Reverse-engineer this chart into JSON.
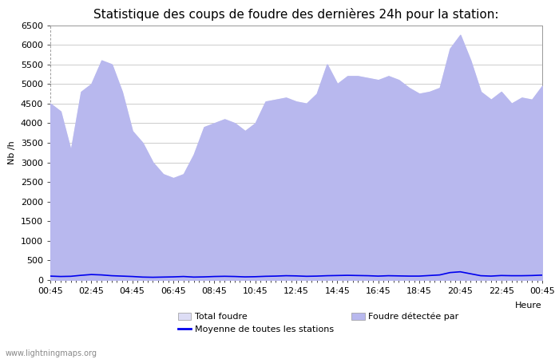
{
  "title": "Statistique des coups de foudre des dernières 24h pour la station:",
  "ylabel": "Nb /h",
  "xlabel": "Heure",
  "watermark": "www.lightningmaps.org",
  "ylim": [
    0,
    6500
  ],
  "yticks": [
    0,
    500,
    1000,
    1500,
    2000,
    2500,
    3000,
    3500,
    4000,
    4500,
    5000,
    5500,
    6000,
    6500
  ],
  "xtick_labels": [
    "00:45",
    "02:45",
    "04:45",
    "06:45",
    "08:45",
    "10:45",
    "12:45",
    "14:45",
    "16:45",
    "18:45",
    "20:45",
    "22:45",
    "00:45"
  ],
  "fill_color_total": "#ddddf5",
  "fill_color_detected": "#b8b8ee",
  "line_color": "#0000ee",
  "bg_color": "#ffffff",
  "grid_color": "#cccccc",
  "title_fontsize": 11,
  "axis_fontsize": 8,
  "tick_fontsize": 8,
  "x_values": [
    0,
    1,
    2,
    3,
    4,
    5,
    6,
    7,
    8,
    9,
    10,
    11,
    12,
    13,
    14,
    15,
    16,
    17,
    18,
    19,
    20,
    21,
    22,
    23,
    24,
    25,
    26,
    27,
    28,
    29,
    30,
    31,
    32,
    33,
    34,
    35,
    36,
    37,
    38,
    39,
    40,
    41,
    42,
    43,
    44,
    45,
    46,
    47,
    48
  ],
  "total_foudre": [
    4500,
    4300,
    3300,
    4800,
    5000,
    5600,
    5500,
    4800,
    3800,
    3500,
    3000,
    2700,
    2600,
    2700,
    3200,
    3900,
    4000,
    4100,
    4000,
    3800,
    4000,
    4550,
    4600,
    4650,
    4550,
    4500,
    4750,
    5500,
    5000,
    5200,
    5200,
    5150,
    5100,
    5200,
    5100,
    4900,
    4750,
    4800,
    4900,
    5900,
    6250,
    5600,
    4800,
    4600,
    4800,
    4500,
    4650,
    4600,
    4950
  ],
  "detected_foudre": [
    4500,
    4300,
    3300,
    4800,
    5000,
    5600,
    5500,
    4800,
    3800,
    3500,
    3000,
    2700,
    2600,
    2700,
    3200,
    3900,
    4000,
    4100,
    4000,
    3800,
    4000,
    4550,
    4600,
    4650,
    4550,
    4500,
    4750,
    5500,
    5000,
    5200,
    5200,
    5150,
    5100,
    5200,
    5100,
    4900,
    4750,
    4800,
    4900,
    5900,
    6250,
    5600,
    4800,
    4600,
    4800,
    4500,
    4650,
    4600,
    4950
  ],
  "mean_values": [
    100,
    90,
    95,
    120,
    140,
    130,
    110,
    100,
    90,
    75,
    70,
    75,
    80,
    90,
    75,
    80,
    90,
    95,
    90,
    80,
    85,
    95,
    100,
    110,
    105,
    95,
    100,
    110,
    115,
    120,
    115,
    110,
    100,
    110,
    105,
    100,
    100,
    115,
    130,
    190,
    210,
    160,
    110,
    100,
    115,
    110,
    110,
    115,
    125
  ]
}
